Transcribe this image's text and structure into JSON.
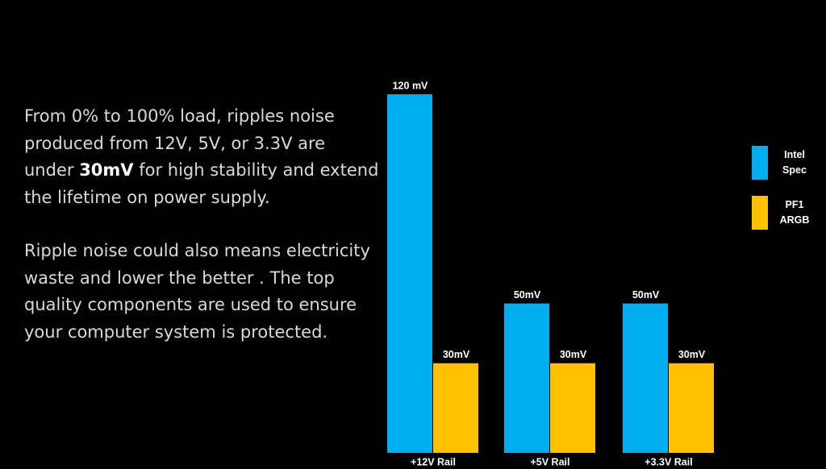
{
  "text": {
    "paragraphs": [
      [
        "From 0% to 100% load, ripples noise produced from 12V, 5V, or 3.3V are under ",
        "30mV",
        " for high stability and extend the lifetime on power supply."
      ],
      [
        "Ripple noise could also means electricity waste and lower the better . The top quality components are used to ensure your computer system is protected."
      ]
    ]
  },
  "chart_data": {
    "type": "bar",
    "categories": [
      "+12V Rail",
      "+5V Rail",
      "+3.3V Rail"
    ],
    "series": [
      {
        "name": "Intel Spec",
        "color": "#00aeef",
        "values": [
          120,
          50,
          50
        ],
        "value_labels": [
          "120 mV",
          "50mV",
          "50mV"
        ]
      },
      {
        "name": "PF1 ARGB",
        "color": "#ffc000",
        "values": [
          30,
          30,
          30
        ],
        "value_labels": [
          "30mV",
          "30mV",
          "30mV"
        ]
      }
    ],
    "ylim": [
      0,
      120
    ]
  }
}
